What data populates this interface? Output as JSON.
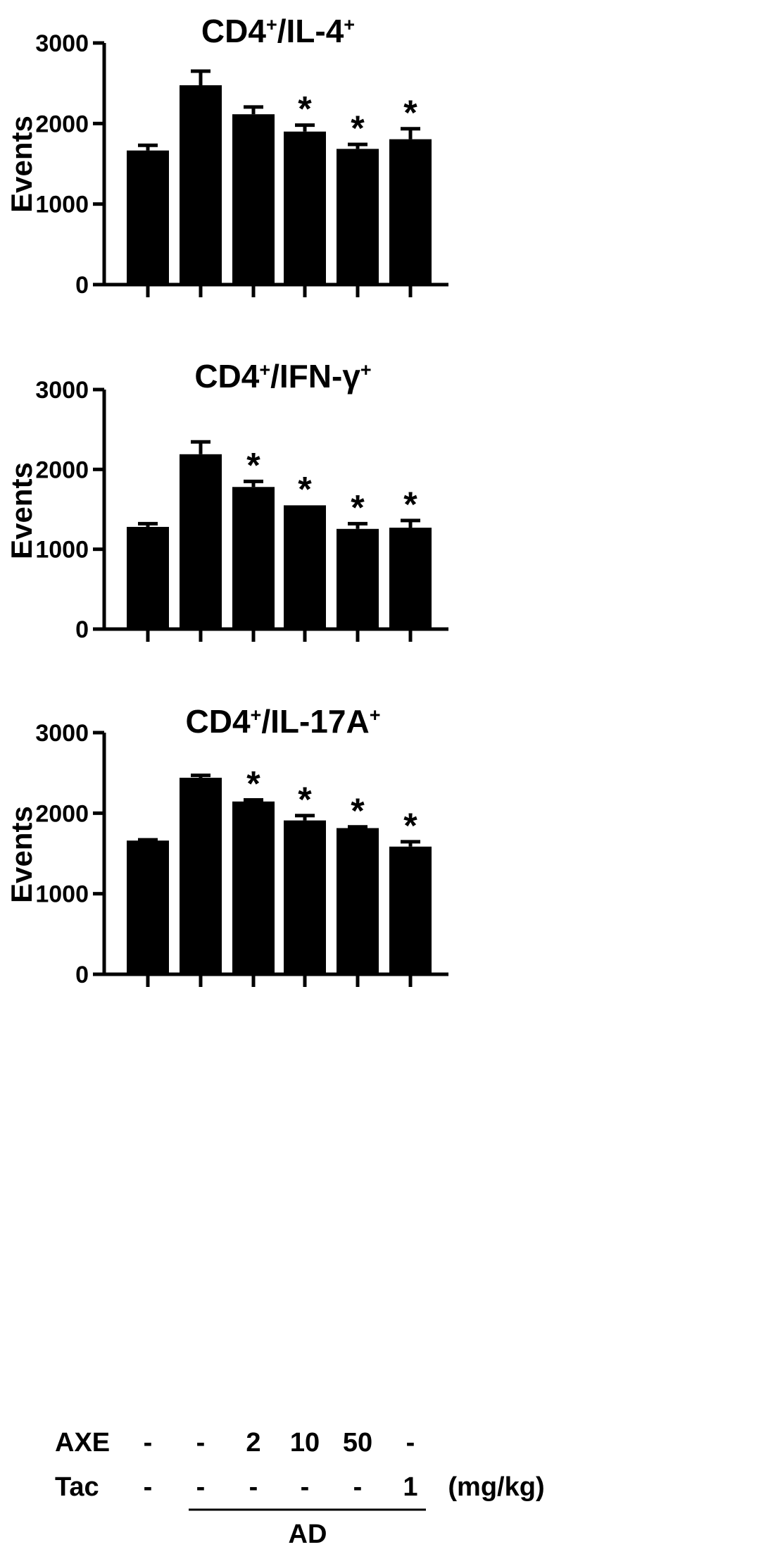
{
  "chart_data": [
    {
      "type": "bar",
      "title": "CD4+/IL-4+",
      "title_parts": {
        "a": "CD4",
        "sup1": "+",
        "b": "/IL-4",
        "sup2": "+"
      },
      "ylabel": "Events",
      "ylim": [
        0,
        3000
      ],
      "yticks": [
        "0",
        "1000",
        "2000",
        "3000"
      ],
      "values": [
        1665,
        2475,
        2115,
        1900,
        1685,
        1805
      ],
      "errors": [
        65,
        175,
        90,
        80,
        55,
        130
      ],
      "significance": [
        "",
        "",
        "",
        "*",
        "*",
        "*"
      ],
      "color": "#000000"
    },
    {
      "type": "bar",
      "title": "CD4+/IFN-γ+",
      "title_parts": {
        "a": "CD4",
        "sup1": "+",
        "b": "/IFN-γ",
        "sup2": "+"
      },
      "ylabel": "Events",
      "ylim": [
        0,
        3000
      ],
      "yticks": [
        "0",
        "1000",
        "2000",
        "3000"
      ],
      "values": [
        1280,
        2190,
        1780,
        1550,
        1255,
        1270
      ],
      "errors": [
        40,
        155,
        70,
        0,
        65,
        90
      ],
      "significance": [
        "",
        "",
        "*",
        "*",
        "*",
        "*"
      ],
      "color": "#000000"
    },
    {
      "type": "bar",
      "title": "CD4+/IL-17A+",
      "title_parts": {
        "a": "CD4",
        "sup1": "+",
        "b": "/IL-17A",
        "sup2": "+"
      },
      "ylabel": "Events",
      "ylim": [
        0,
        3000
      ],
      "yticks": [
        "0",
        "1000",
        "2000",
        "3000"
      ],
      "values": [
        1660,
        2440,
        2145,
        1910,
        1815,
        1585
      ],
      "errors": [
        10,
        30,
        20,
        60,
        15,
        60
      ],
      "significance": [
        "",
        "",
        "*",
        "*",
        "*",
        "*"
      ],
      "color": "#000000"
    }
  ],
  "conditions": {
    "axe_label": "AXE",
    "axe_values": [
      "-",
      "-",
      "2",
      "10",
      "50",
      "-"
    ],
    "tac_label": "Tac",
    "tac_values": [
      "-",
      "-",
      "-",
      "-",
      "-",
      "1"
    ],
    "unit": "(mg/kg)",
    "group_label": "AD"
  }
}
